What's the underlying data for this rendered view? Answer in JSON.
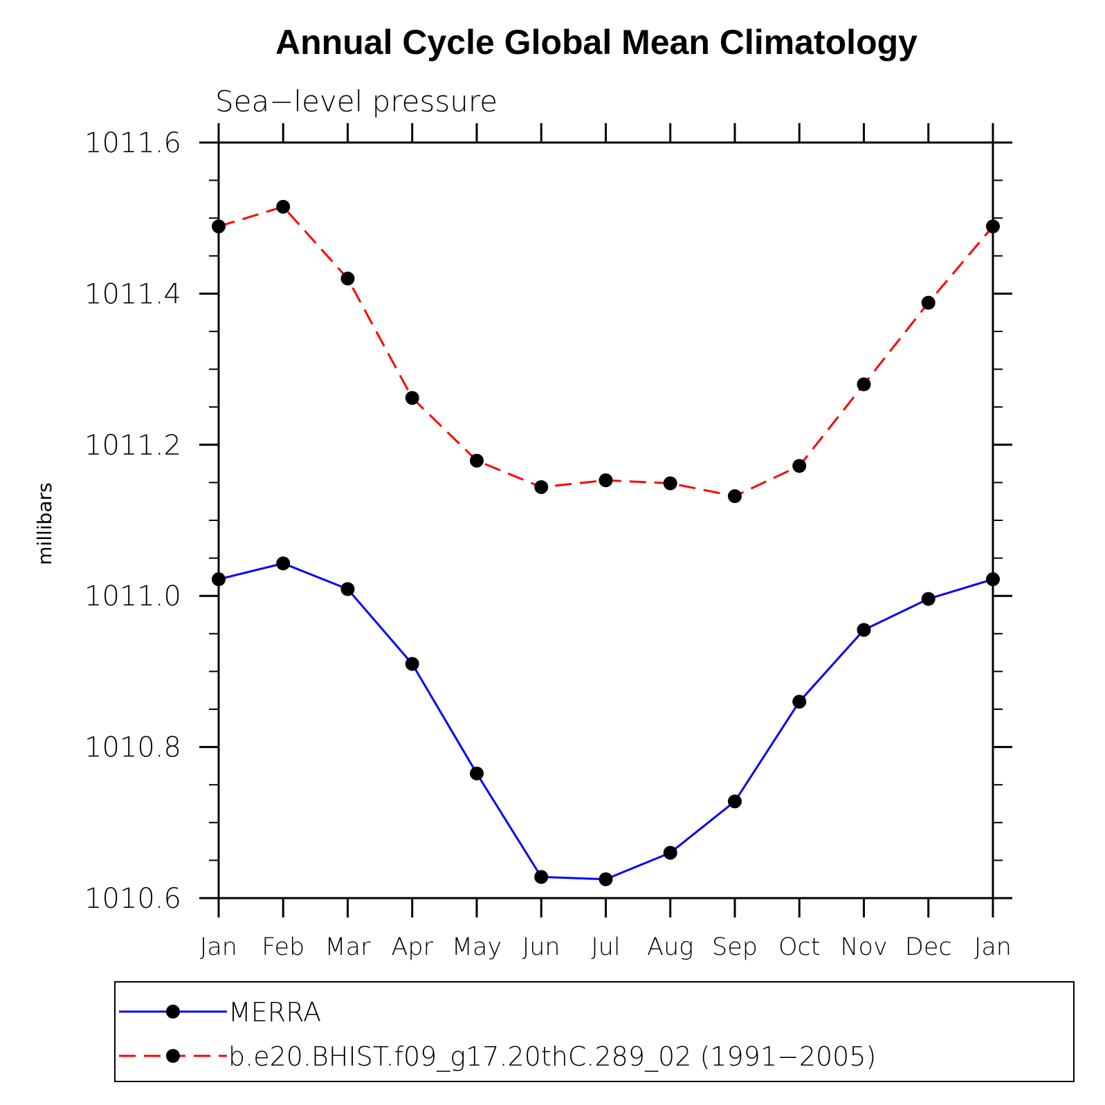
{
  "chart_data": {
    "type": "line",
    "title": "Annual Cycle Global Mean Climatology",
    "subtitle": "Sea−level pressure",
    "ylabel": "millibars",
    "xlabel": "",
    "categories": [
      "Jan",
      "Feb",
      "Mar",
      "Apr",
      "May",
      "Jun",
      "Jul",
      "Aug",
      "Sep",
      "Oct",
      "Nov",
      "Dec",
      "Jan"
    ],
    "ylim": [
      1010.6,
      1011.6
    ],
    "yticks": [
      1010.6,
      1010.8,
      1011.0,
      1011.2,
      1011.4,
      1011.6
    ],
    "ytick_labels": [
      "1010.6",
      "1010.8",
      "1011.0",
      "1011.2",
      "1011.4",
      "1011.6"
    ],
    "yminor_step": 0.05,
    "grid": false,
    "legend_position": "bottom",
    "series": [
      {
        "name": "MERRA",
        "color": "#0000ff",
        "line_style": "solid",
        "marker": "filled-circle",
        "values": [
          1011.022,
          1011.043,
          1011.009,
          1010.91,
          1010.765,
          1010.628,
          1010.625,
          1010.66,
          1010.728,
          1010.86,
          1010.955,
          1010.996,
          1011.022
        ]
      },
      {
        "name": "b.e20.BHIST.f09_g17.20thC.289_02 (1991−2005)",
        "color": "#ff0000",
        "line_style": "dashed",
        "marker": "filled-circle",
        "values": [
          1011.489,
          1011.515,
          1011.42,
          1011.262,
          1011.179,
          1011.144,
          1011.153,
          1011.149,
          1011.132,
          1011.172,
          1011.28,
          1011.388,
          1011.489
        ]
      }
    ]
  }
}
